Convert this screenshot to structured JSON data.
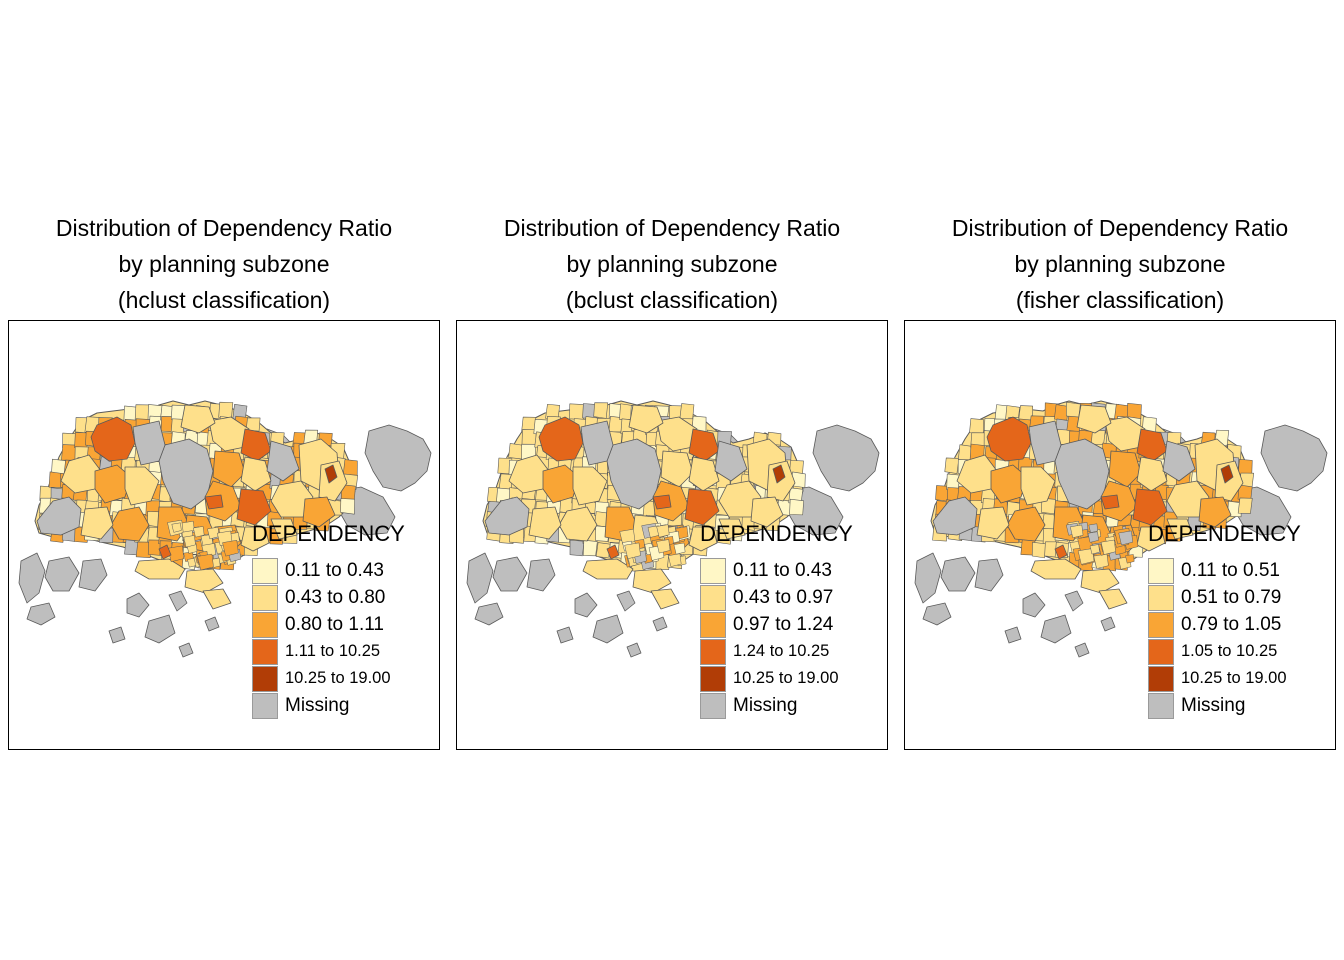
{
  "panels": [
    {
      "title_lines": [
        "Distribution of Dependency Ratio",
        "by planning subzone",
        "(hclust classification)"
      ],
      "legend_title": "DEPENDENCY",
      "classes": [
        "0.11 to 0.43",
        "0.43 to 0.80",
        "0.80 to 1.11",
        "1.11 to 10.25",
        "10.25 to 19.00"
      ],
      "missing_label": "Missing"
    },
    {
      "title_lines": [
        "Distribution of Dependency Ratio",
        "by planning subzone",
        "(bclust classification)"
      ],
      "legend_title": "DEPENDENCY",
      "classes": [
        "0.11 to 0.43",
        "0.43 to 0.97",
        "0.97 to 1.24",
        "1.24 to 10.25",
        "10.25 to 19.00"
      ],
      "missing_label": "Missing"
    },
    {
      "title_lines": [
        "Distribution of Dependency Ratio",
        "by planning subzone",
        "(fisher classification)"
      ],
      "legend_title": "DEPENDENCY",
      "classes": [
        "0.11 to 0.51",
        "0.51 to 0.79",
        "0.79 to 1.05",
        "1.05 to 10.25",
        "10.25 to 19.00"
      ],
      "missing_label": "Missing"
    }
  ],
  "colors": {
    "class_1": "#FFF7C6",
    "class_2": "#FEE08B",
    "class_3": "#F9A535",
    "class_4": "#E4661A",
    "class_5": "#B13D06",
    "missing": "#BEBEBE",
    "zone_border": "#5A5A5A"
  }
}
